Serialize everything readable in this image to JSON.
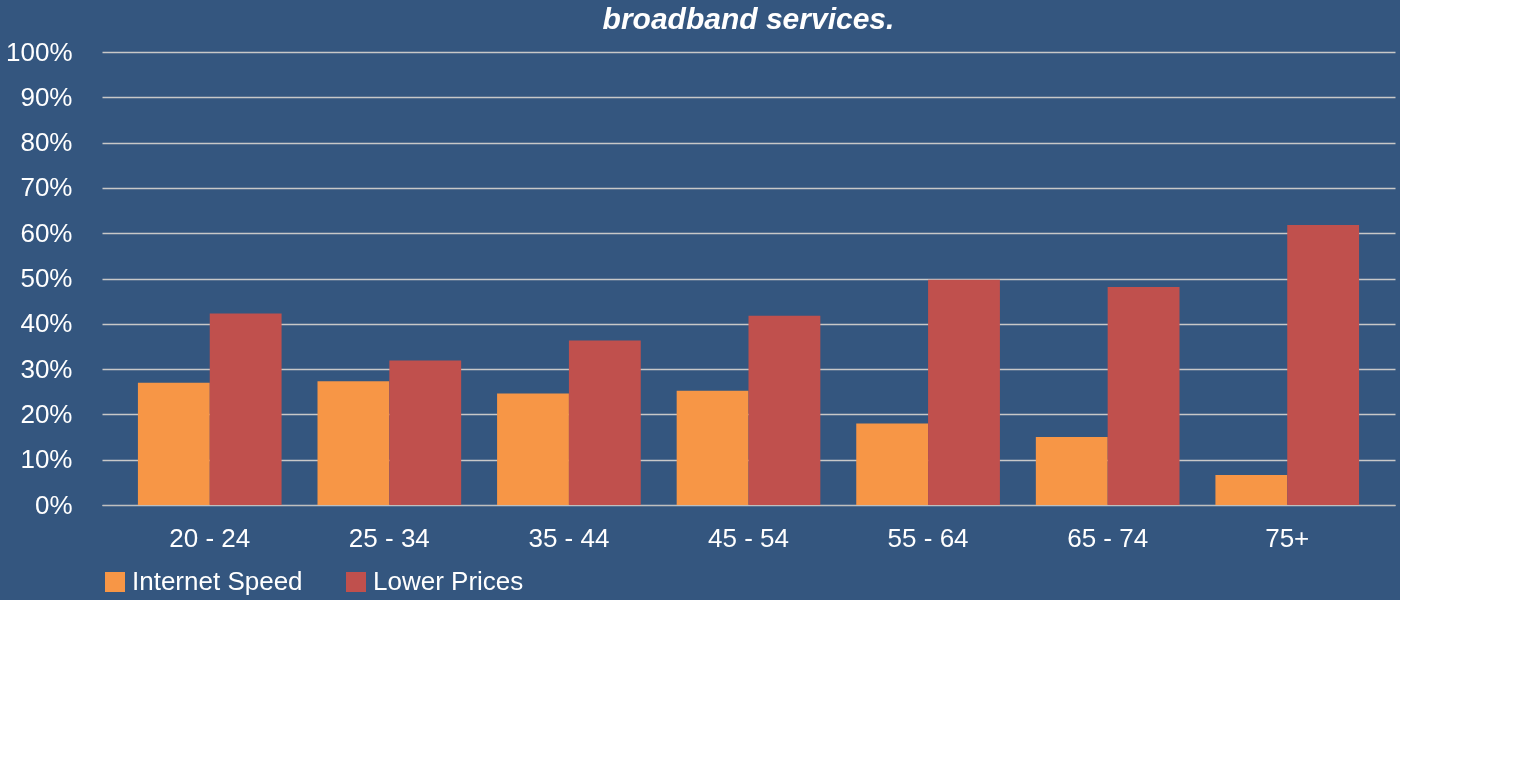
{
  "chart_data": {
    "type": "bar",
    "title": "broadband services.",
    "categories": [
      "20 - 24",
      "25 - 34",
      "35 - 44",
      "45 - 54",
      "55 - 64",
      "65 - 74",
      "75+"
    ],
    "series": [
      {
        "name": "Internet Speed",
        "color": "#f79646",
        "values": [
          27,
          27.3,
          24.6,
          25.2,
          18,
          15,
          6.6
        ]
      },
      {
        "name": "Lower Prices",
        "color": "#c0504d",
        "values": [
          42.3,
          31.9,
          36.3,
          41.8,
          49.7,
          48.1,
          61.8
        ]
      }
    ],
    "ylim": [
      0,
      100
    ],
    "yticks": [
      {
        "value": 0,
        "label": "0%"
      },
      {
        "value": 10,
        "label": "10%"
      },
      {
        "value": 20,
        "label": "20%"
      },
      {
        "value": 30,
        "label": "30%"
      },
      {
        "value": 40,
        "label": "40%"
      },
      {
        "value": 50,
        "label": "50%"
      },
      {
        "value": 60,
        "label": "60%"
      },
      {
        "value": 70,
        "label": "70%"
      },
      {
        "value": 80,
        "label": "80%"
      },
      {
        "value": 90,
        "label": "90%"
      },
      {
        "value": 100,
        "label": "100%"
      }
    ],
    "grid": "y",
    "legend": "bottom"
  }
}
